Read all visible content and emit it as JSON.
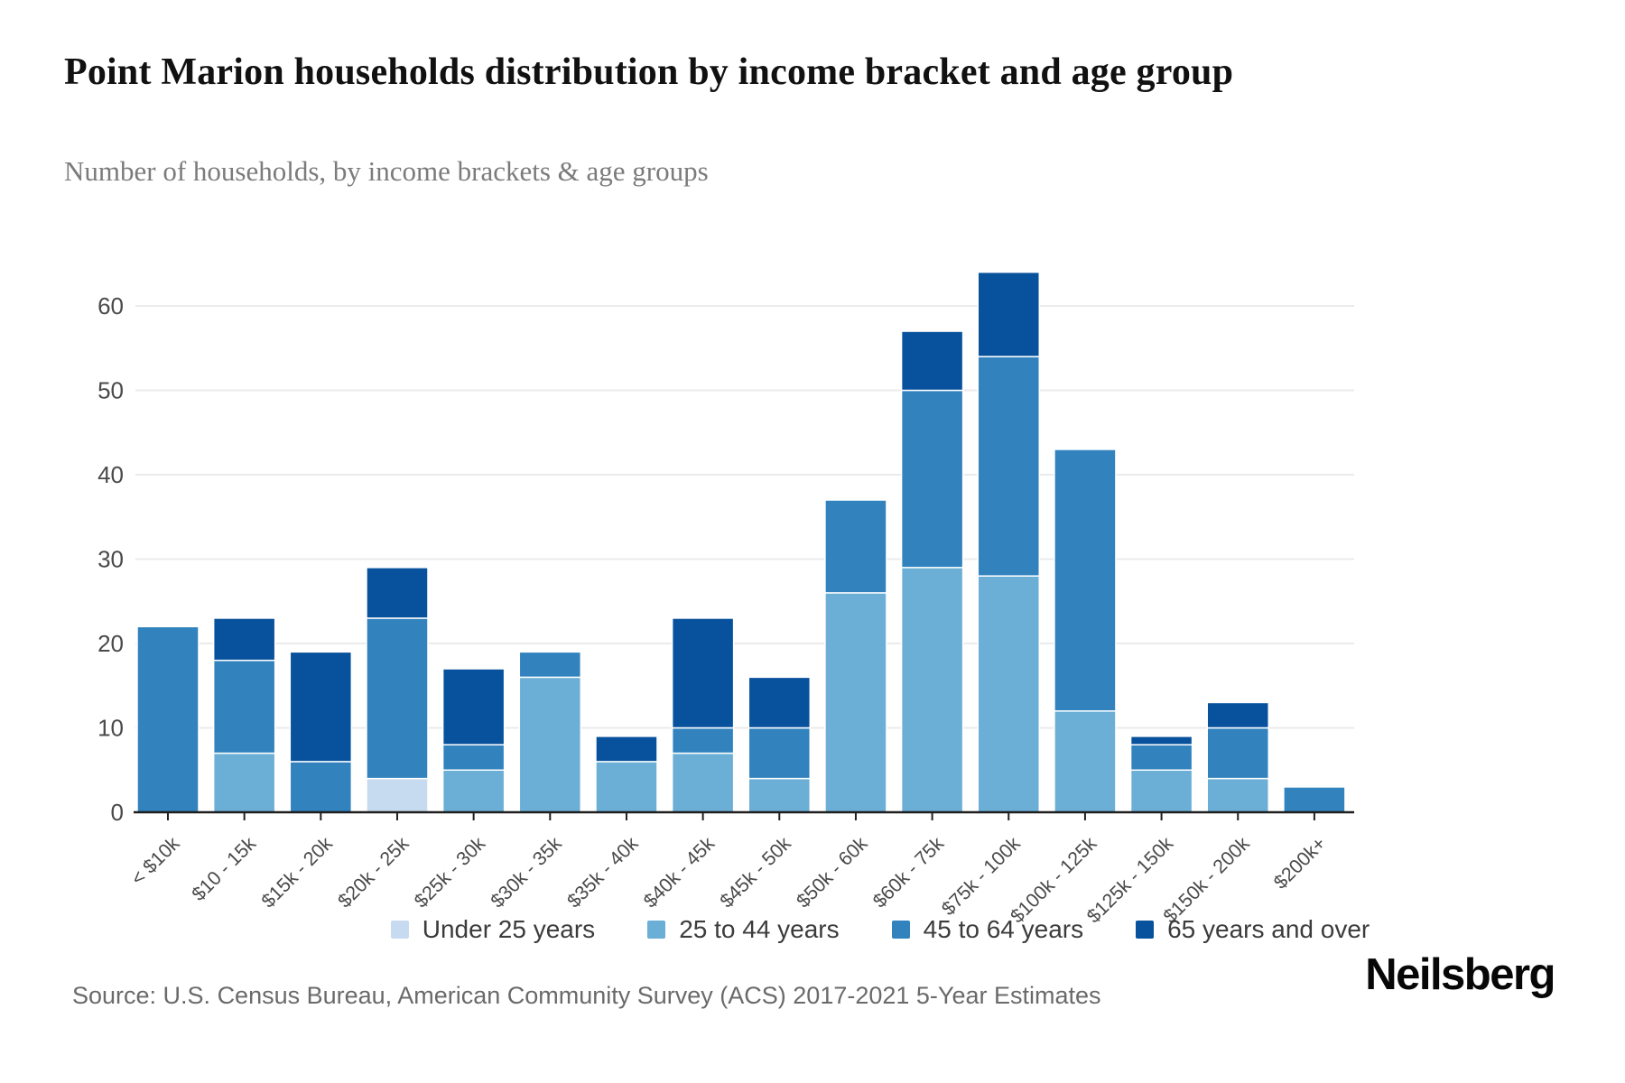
{
  "header": {
    "title": "Point Marion households distribution by income bracket and age group",
    "subtitle": "Number of households, by income brackets & age groups"
  },
  "footer": {
    "source": "Source: U.S. Census Bureau, American Community Survey (ACS) 2017-2021 5-Year Estimates",
    "brand": "Neilsberg"
  },
  "colors": {
    "under_25": "#c6dbef",
    "age_25_44": "#6baed6",
    "age_45_64": "#3182bd",
    "age_65_over": "#08519c",
    "gridline": "#ebebeb",
    "axis": "#1f1f1f",
    "tick_label": "#4a4a4a"
  },
  "chart_data": {
    "type": "bar",
    "stacked": true,
    "title": "Point Marion households distribution by income bracket and age group",
    "subtitle": "Number of households, by income brackets & age groups",
    "xlabel": "",
    "ylabel": "",
    "categories": [
      "< $10k",
      "$10 - 15k",
      "$15k - 20k",
      "$20k - 25k",
      "$25k - 30k",
      "$30k - 35k",
      "$35k - 40k",
      "$40k - 45k",
      "$45k - 50k",
      "$50k - 60k",
      "$60k - 75k",
      "$75k - 100k",
      "$100k - 125k",
      "$125k - 150k",
      "$150k - 200k",
      "$200k+"
    ],
    "series": [
      {
        "name": "Under 25 years",
        "color": "#c6dbef",
        "values": [
          0,
          0,
          0,
          4,
          0,
          0,
          0,
          0,
          0,
          0,
          0,
          0,
          0,
          0,
          0,
          0
        ]
      },
      {
        "name": "25 to 44 years",
        "color": "#6baed6",
        "values": [
          0,
          7,
          0,
          0,
          5,
          16,
          6,
          7,
          4,
          26,
          29,
          28,
          12,
          5,
          4,
          0
        ]
      },
      {
        "name": "45 to 64 years",
        "color": "#3182bd",
        "values": [
          22,
          11,
          6,
          19,
          3,
          3,
          0,
          3,
          6,
          11,
          21,
          26,
          31,
          3,
          6,
          3
        ]
      },
      {
        "name": "65 years and over",
        "color": "#08519c",
        "values": [
          0,
          5,
          13,
          6,
          9,
          0,
          3,
          13,
          6,
          0,
          7,
          10,
          0,
          1,
          3,
          0
        ]
      }
    ],
    "stack_totals": [
      22,
      23,
      19,
      29,
      17,
      19,
      9,
      23,
      16,
      37,
      57,
      64,
      43,
      9,
      13,
      3
    ],
    "ylim": [
      0,
      65
    ],
    "yticks": [
      0,
      10,
      20,
      30,
      40,
      50,
      60
    ],
    "grid": true,
    "legend_position": "bottom"
  }
}
